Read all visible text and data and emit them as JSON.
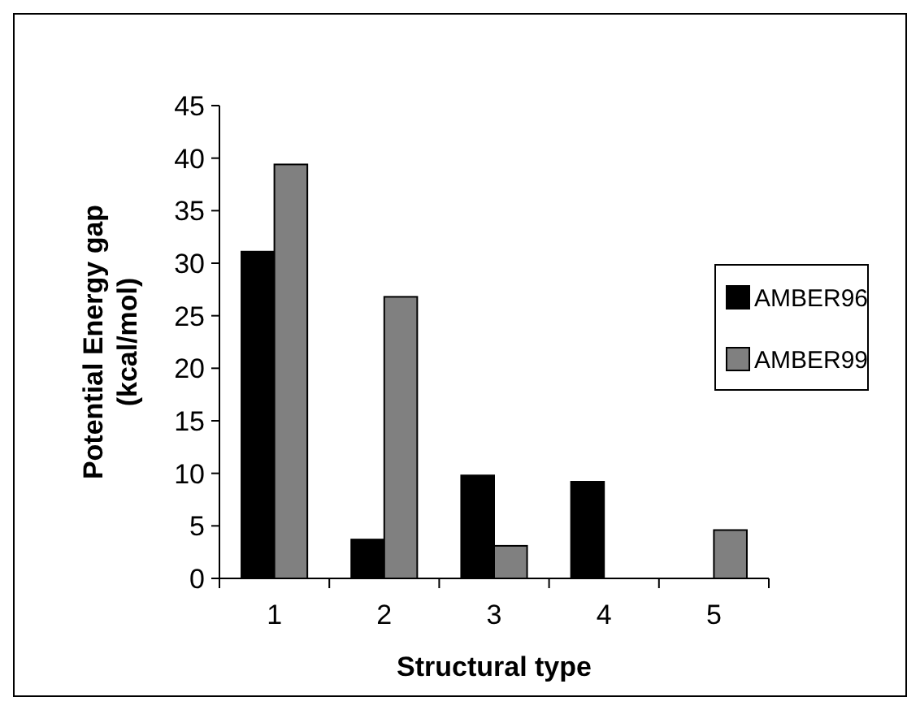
{
  "chart_data": {
    "type": "bar",
    "xlabel": "Structural type",
    "ylabel": "Potential Energy gap\n(kcal/mol)",
    "categories": [
      "1",
      "2",
      "3",
      "4",
      "5"
    ],
    "series": [
      {
        "name": "AMBER96",
        "color": "#000000",
        "values": [
          31.1,
          3.7,
          9.8,
          9.2,
          0
        ]
      },
      {
        "name": "AMBER99",
        "color": "#808080",
        "values": [
          39.4,
          26.8,
          3.1,
          0,
          4.6
        ]
      }
    ],
    "ylim": [
      0,
      45
    ],
    "yticks": [
      0,
      5,
      10,
      15,
      20,
      25,
      30,
      35,
      40,
      45
    ],
    "grid": false,
    "legend": "right"
  }
}
